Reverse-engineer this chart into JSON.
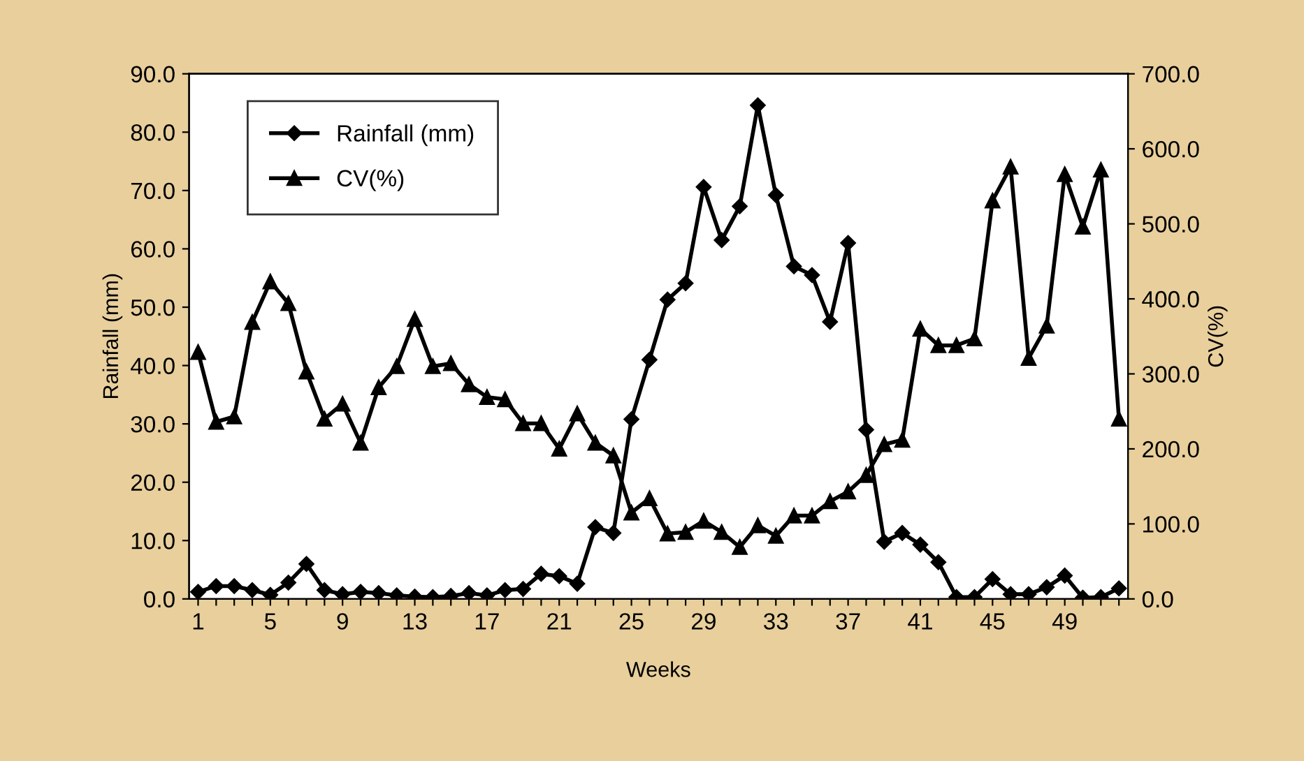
{
  "chart_data": {
    "type": "line",
    "xlabel": "Weeks",
    "ylabel": "Rainfall (mm)",
    "y2label": "CV(%)",
    "x": [
      1,
      2,
      3,
      4,
      5,
      6,
      7,
      8,
      9,
      10,
      11,
      12,
      13,
      14,
      15,
      16,
      17,
      18,
      19,
      20,
      21,
      22,
      23,
      24,
      25,
      26,
      27,
      28,
      29,
      30,
      31,
      32,
      33,
      34,
      35,
      36,
      37,
      38,
      39,
      40,
      41,
      42,
      43,
      44,
      45,
      46,
      47,
      48,
      49,
      50,
      51,
      52
    ],
    "xlim": [
      0.5,
      52.5
    ],
    "xticks": [
      1,
      {
        "value": 2,
        "label": null
      },
      {
        "value": 3,
        "label": null
      },
      {
        "value": 4,
        "label": null
      },
      5,
      {
        "value": 6,
        "label": null
      },
      {
        "value": 7,
        "label": null
      },
      {
        "value": 8,
        "label": null
      },
      9,
      {
        "value": 10,
        "label": null
      },
      {
        "value": 11,
        "label": null
      },
      {
        "value": 12,
        "label": null
      },
      13,
      {
        "value": 14,
        "label": null
      },
      {
        "value": 15,
        "label": null
      },
      {
        "value": 16,
        "label": null
      },
      17,
      {
        "value": 18,
        "label": null
      },
      {
        "value": 19,
        "label": null
      },
      {
        "value": 20,
        "label": null
      },
      21,
      {
        "value": 22,
        "label": null
      },
      {
        "value": 23,
        "label": null
      },
      {
        "value": 24,
        "label": null
      },
      25,
      {
        "value": 26,
        "label": null
      },
      {
        "value": 27,
        "label": null
      },
      {
        "value": 28,
        "label": null
      },
      29,
      {
        "value": 30,
        "label": null
      },
      {
        "value": 31,
        "label": null
      },
      {
        "value": 32,
        "label": null
      },
      33,
      {
        "value": 34,
        "label": null
      },
      {
        "value": 35,
        "label": null
      },
      {
        "value": 36,
        "label": null
      },
      37,
      {
        "value": 38,
        "label": null
      },
      {
        "value": 39,
        "label": null
      },
      {
        "value": 40,
        "label": null
      },
      41,
      {
        "value": 42,
        "label": null
      },
      {
        "value": 43,
        "label": null
      },
      {
        "value": 44,
        "label": null
      },
      45,
      {
        "value": 46,
        "label": null
      },
      {
        "value": 47,
        "label": null
      },
      {
        "value": 48,
        "label": null
      },
      49,
      {
        "value": 50,
        "label": null
      },
      {
        "value": 51,
        "label": null
      },
      {
        "value": 52,
        "label": null
      }
    ],
    "ylim": [
      0,
      90
    ],
    "yticks": [
      {
        "value": 0,
        "label": "0.0"
      },
      {
        "value": 10,
        "label": "10.0"
      },
      {
        "value": 20,
        "label": "20.0"
      },
      {
        "value": 30,
        "label": "30.0"
      },
      {
        "value": 40,
        "label": "40.0"
      },
      {
        "value": 50,
        "label": "50.0"
      },
      {
        "value": 60,
        "label": "60.0"
      },
      {
        "value": 70,
        "label": "70.0"
      },
      {
        "value": 80,
        "label": "80.0"
      },
      {
        "value": 90,
        "label": "90.0"
      }
    ],
    "y2lim": [
      0,
      700
    ],
    "y2ticks": [
      {
        "value": 0,
        "label": "0.0"
      },
      {
        "value": 100,
        "label": "100.0"
      },
      {
        "value": 200,
        "label": "200.0"
      },
      {
        "value": 300,
        "label": "300.0"
      },
      {
        "value": 400,
        "label": "400.0"
      },
      {
        "value": 500,
        "label": "500.0"
      },
      {
        "value": 600,
        "label": "600.0"
      },
      {
        "value": 700,
        "label": "700.0"
      }
    ],
    "legend": "top left",
    "grid": false,
    "line_style": "solid",
    "series": [
      {
        "name": "Rainfall (mm)",
        "color": "#000000",
        "marker": "diamond",
        "values": [
          1.2,
          2.2,
          2.2,
          1.5,
          0.7,
          2.8,
          6.0,
          1.5,
          0.8,
          1.2,
          1.0,
          0.6,
          0.4,
          0.3,
          0.5,
          1.0,
          0.6,
          1.5,
          1.7,
          4.3,
          3.9,
          2.6,
          12.3,
          11.3,
          30.8,
          41.0,
          51.3,
          54.1,
          70.6,
          61.5,
          67.3,
          84.6,
          69.2,
          57.0,
          55.5,
          47.5,
          61.0,
          29.0,
          9.8,
          11.3,
          9.3,
          6.3,
          0.3,
          0.3,
          3.4,
          0.8,
          0.8,
          2.0,
          4.0,
          0.2,
          0.3,
          1.8
        ]
      },
      {
        "name": "CV(%)",
        "color": "#000000",
        "marker": "triangle",
        "axis": "y2",
        "values": [
          329,
          236,
          243,
          369,
          423,
          394,
          303,
          240,
          260,
          208,
          282,
          310,
          373,
          310,
          314,
          286,
          269,
          266,
          234,
          234,
          200,
          247,
          208,
          191,
          115,
          134,
          87,
          89,
          104,
          89,
          69,
          98,
          84,
          111,
          111,
          130,
          143,
          165,
          206,
          212,
          360,
          338,
          338,
          347,
          531,
          576,
          321,
          364,
          566,
          496,
          572,
          240
        ]
      }
    ]
  }
}
